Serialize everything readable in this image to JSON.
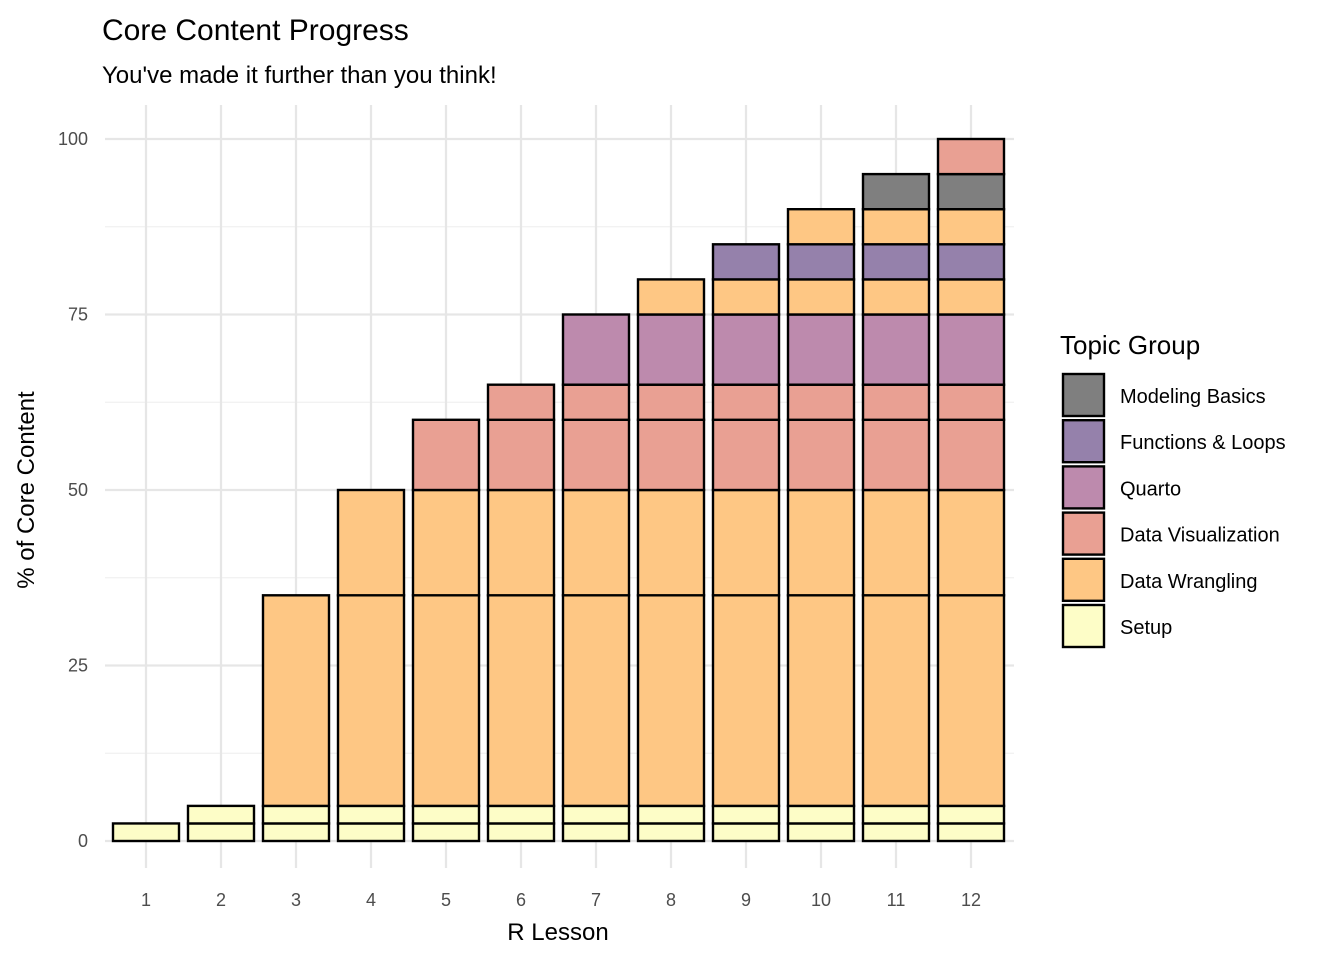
{
  "chart_data": {
    "type": "bar",
    "stacked": true,
    "title": "Core Content Progress",
    "subtitle": "You've made it further than you think!",
    "xlabel": "R Lesson",
    "ylabel": "% of Core Content",
    "categories": [
      "1",
      "2",
      "3",
      "4",
      "5",
      "6",
      "7",
      "8",
      "9",
      "10",
      "11",
      "12"
    ],
    "ylim": [
      0,
      100
    ],
    "yticks": [
      0,
      25,
      50,
      75,
      100
    ],
    "grid": true,
    "legend": {
      "title": "Topic Group",
      "placement": "right",
      "order": [
        "Modeling Basics",
        "Functions & Loops",
        "Quarto",
        "Data Visualization",
        "Data Wrangling",
        "Setup"
      ]
    },
    "colors": {
      "Setup": "#fdfdc7",
      "Data Wrangling": "#fec784",
      "Data Visualization": "#e9a093",
      "Quarto": "#bd8aad",
      "Functions & Loops": "#9581ab",
      "Modeling Basics": "#7f7f7f"
    },
    "stacks": [
      [
        {
          "group": "Setup",
          "value": 2.5
        }
      ],
      [
        {
          "group": "Setup",
          "value": 2.5
        },
        {
          "group": "Setup",
          "value": 2.5
        }
      ],
      [
        {
          "group": "Setup",
          "value": 2.5
        },
        {
          "group": "Setup",
          "value": 2.5
        },
        {
          "group": "Data Wrangling",
          "value": 30
        }
      ],
      [
        {
          "group": "Setup",
          "value": 2.5
        },
        {
          "group": "Setup",
          "value": 2.5
        },
        {
          "group": "Data Wrangling",
          "value": 30
        },
        {
          "group": "Data Wrangling",
          "value": 15
        }
      ],
      [
        {
          "group": "Setup",
          "value": 2.5
        },
        {
          "group": "Setup",
          "value": 2.5
        },
        {
          "group": "Data Wrangling",
          "value": 30
        },
        {
          "group": "Data Wrangling",
          "value": 15
        },
        {
          "group": "Data Visualization",
          "value": 10
        }
      ],
      [
        {
          "group": "Setup",
          "value": 2.5
        },
        {
          "group": "Setup",
          "value": 2.5
        },
        {
          "group": "Data Wrangling",
          "value": 30
        },
        {
          "group": "Data Wrangling",
          "value": 15
        },
        {
          "group": "Data Visualization",
          "value": 10
        },
        {
          "group": "Data Visualization",
          "value": 5
        }
      ],
      [
        {
          "group": "Setup",
          "value": 2.5
        },
        {
          "group": "Setup",
          "value": 2.5
        },
        {
          "group": "Data Wrangling",
          "value": 30
        },
        {
          "group": "Data Wrangling",
          "value": 15
        },
        {
          "group": "Data Visualization",
          "value": 10
        },
        {
          "group": "Data Visualization",
          "value": 5
        },
        {
          "group": "Quarto",
          "value": 10
        }
      ],
      [
        {
          "group": "Setup",
          "value": 2.5
        },
        {
          "group": "Setup",
          "value": 2.5
        },
        {
          "group": "Data Wrangling",
          "value": 30
        },
        {
          "group": "Data Wrangling",
          "value": 15
        },
        {
          "group": "Data Visualization",
          "value": 10
        },
        {
          "group": "Data Visualization",
          "value": 5
        },
        {
          "group": "Quarto",
          "value": 10
        },
        {
          "group": "Data Wrangling",
          "value": 5
        }
      ],
      [
        {
          "group": "Setup",
          "value": 2.5
        },
        {
          "group": "Setup",
          "value": 2.5
        },
        {
          "group": "Data Wrangling",
          "value": 30
        },
        {
          "group": "Data Wrangling",
          "value": 15
        },
        {
          "group": "Data Visualization",
          "value": 10
        },
        {
          "group": "Data Visualization",
          "value": 5
        },
        {
          "group": "Quarto",
          "value": 10
        },
        {
          "group": "Data Wrangling",
          "value": 5
        },
        {
          "group": "Functions & Loops",
          "value": 5
        }
      ],
      [
        {
          "group": "Setup",
          "value": 2.5
        },
        {
          "group": "Setup",
          "value": 2.5
        },
        {
          "group": "Data Wrangling",
          "value": 30
        },
        {
          "group": "Data Wrangling",
          "value": 15
        },
        {
          "group": "Data Visualization",
          "value": 10
        },
        {
          "group": "Data Visualization",
          "value": 5
        },
        {
          "group": "Quarto",
          "value": 10
        },
        {
          "group": "Data Wrangling",
          "value": 5
        },
        {
          "group": "Functions & Loops",
          "value": 5
        },
        {
          "group": "Data Wrangling",
          "value": 5
        }
      ],
      [
        {
          "group": "Setup",
          "value": 2.5
        },
        {
          "group": "Setup",
          "value": 2.5
        },
        {
          "group": "Data Wrangling",
          "value": 30
        },
        {
          "group": "Data Wrangling",
          "value": 15
        },
        {
          "group": "Data Visualization",
          "value": 10
        },
        {
          "group": "Data Visualization",
          "value": 5
        },
        {
          "group": "Quarto",
          "value": 10
        },
        {
          "group": "Data Wrangling",
          "value": 5
        },
        {
          "group": "Functions & Loops",
          "value": 5
        },
        {
          "group": "Data Wrangling",
          "value": 5
        },
        {
          "group": "Modeling Basics",
          "value": 5
        }
      ],
      [
        {
          "group": "Setup",
          "value": 2.5
        },
        {
          "group": "Setup",
          "value": 2.5
        },
        {
          "group": "Data Wrangling",
          "value": 30
        },
        {
          "group": "Data Wrangling",
          "value": 15
        },
        {
          "group": "Data Visualization",
          "value": 10
        },
        {
          "group": "Data Visualization",
          "value": 5
        },
        {
          "group": "Quarto",
          "value": 10
        },
        {
          "group": "Data Wrangling",
          "value": 5
        },
        {
          "group": "Functions & Loops",
          "value": 5
        },
        {
          "group": "Data Wrangling",
          "value": 5
        },
        {
          "group": "Modeling Basics",
          "value": 5
        },
        {
          "group": "Data Visualization",
          "value": 5
        }
      ]
    ]
  }
}
